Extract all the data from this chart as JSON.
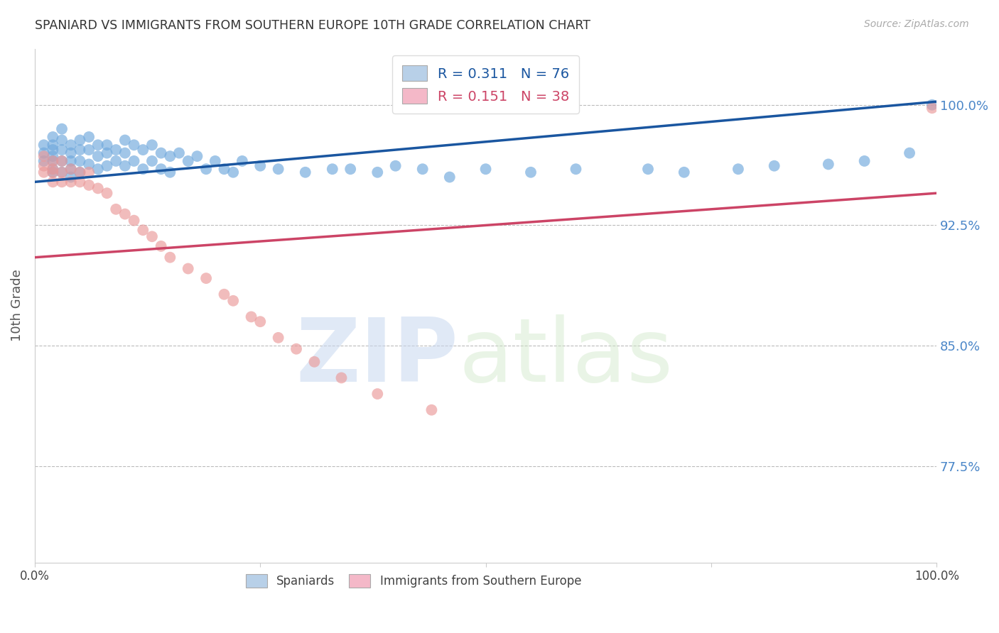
{
  "title": "SPANIARD VS IMMIGRANTS FROM SOUTHERN EUROPE 10TH GRADE CORRELATION CHART",
  "source": "Source: ZipAtlas.com",
  "ylabel": "10th Grade",
  "ytick_labels": [
    "100.0%",
    "92.5%",
    "85.0%",
    "77.5%"
  ],
  "ytick_values": [
    1.0,
    0.925,
    0.85,
    0.775
  ],
  "xlim": [
    0.0,
    1.0
  ],
  "ylim": [
    0.715,
    1.035
  ],
  "blue_R": 0.311,
  "blue_N": 76,
  "pink_R": 0.151,
  "pink_N": 38,
  "blue_color": "#6fa8dc",
  "pink_color": "#ea9999",
  "blue_line_color": "#1a56a0",
  "pink_line_color": "#cc4466",
  "grid_color": "#bbbbbb",
  "title_color": "#333333",
  "right_label_color": "#4a86c8",
  "legend_box_blue": "#b8d0e8",
  "legend_box_pink": "#f4b8c8",
  "blue_scatter_x": [
    0.01,
    0.01,
    0.01,
    0.02,
    0.02,
    0.02,
    0.02,
    0.02,
    0.02,
    0.02,
    0.03,
    0.03,
    0.03,
    0.03,
    0.03,
    0.04,
    0.04,
    0.04,
    0.04,
    0.04,
    0.05,
    0.05,
    0.05,
    0.05,
    0.06,
    0.06,
    0.06,
    0.07,
    0.07,
    0.07,
    0.08,
    0.08,
    0.08,
    0.09,
    0.09,
    0.1,
    0.1,
    0.1,
    0.11,
    0.11,
    0.12,
    0.12,
    0.13,
    0.13,
    0.14,
    0.14,
    0.15,
    0.15,
    0.16,
    0.17,
    0.18,
    0.19,
    0.2,
    0.21,
    0.22,
    0.23,
    0.25,
    0.27,
    0.3,
    0.33,
    0.35,
    0.38,
    0.4,
    0.43,
    0.46,
    0.5,
    0.55,
    0.6,
    0.68,
    0.72,
    0.78,
    0.82,
    0.88,
    0.92,
    0.97,
    0.995
  ],
  "blue_scatter_y": [
    0.975,
    0.97,
    0.965,
    0.98,
    0.975,
    0.972,
    0.968,
    0.965,
    0.96,
    0.958,
    0.985,
    0.978,
    0.972,
    0.965,
    0.958,
    0.975,
    0.97,
    0.965,
    0.96,
    0.955,
    0.978,
    0.972,
    0.965,
    0.958,
    0.98,
    0.972,
    0.963,
    0.975,
    0.968,
    0.96,
    0.975,
    0.97,
    0.962,
    0.972,
    0.965,
    0.978,
    0.97,
    0.962,
    0.975,
    0.965,
    0.972,
    0.96,
    0.975,
    0.965,
    0.97,
    0.96,
    0.968,
    0.958,
    0.97,
    0.965,
    0.968,
    0.96,
    0.965,
    0.96,
    0.958,
    0.965,
    0.962,
    0.96,
    0.958,
    0.96,
    0.96,
    0.958,
    0.962,
    0.96,
    0.955,
    0.96,
    0.958,
    0.96,
    0.96,
    0.958,
    0.96,
    0.962,
    0.963,
    0.965,
    0.97,
    1.0
  ],
  "pink_scatter_x": [
    0.01,
    0.01,
    0.01,
    0.02,
    0.02,
    0.02,
    0.02,
    0.03,
    0.03,
    0.03,
    0.04,
    0.04,
    0.05,
    0.05,
    0.06,
    0.06,
    0.07,
    0.08,
    0.09,
    0.1,
    0.11,
    0.12,
    0.13,
    0.14,
    0.15,
    0.17,
    0.19,
    0.21,
    0.22,
    0.24,
    0.25,
    0.27,
    0.29,
    0.31,
    0.34,
    0.38,
    0.44,
    0.995
  ],
  "pink_scatter_y": [
    0.968,
    0.962,
    0.958,
    0.965,
    0.96,
    0.958,
    0.952,
    0.965,
    0.958,
    0.952,
    0.96,
    0.952,
    0.958,
    0.952,
    0.958,
    0.95,
    0.948,
    0.945,
    0.935,
    0.932,
    0.928,
    0.922,
    0.918,
    0.912,
    0.905,
    0.898,
    0.892,
    0.882,
    0.878,
    0.868,
    0.865,
    0.855,
    0.848,
    0.84,
    0.83,
    0.82,
    0.81,
    0.998
  ],
  "blue_trend_x": [
    0.0,
    1.0
  ],
  "blue_trend_y": [
    0.952,
    1.002
  ],
  "pink_trend_x": [
    0.0,
    1.0
  ],
  "pink_trend_y": [
    0.905,
    0.945
  ],
  "watermark_zip": "ZIP",
  "watermark_atlas": "atlas",
  "background_color": "#ffffff"
}
